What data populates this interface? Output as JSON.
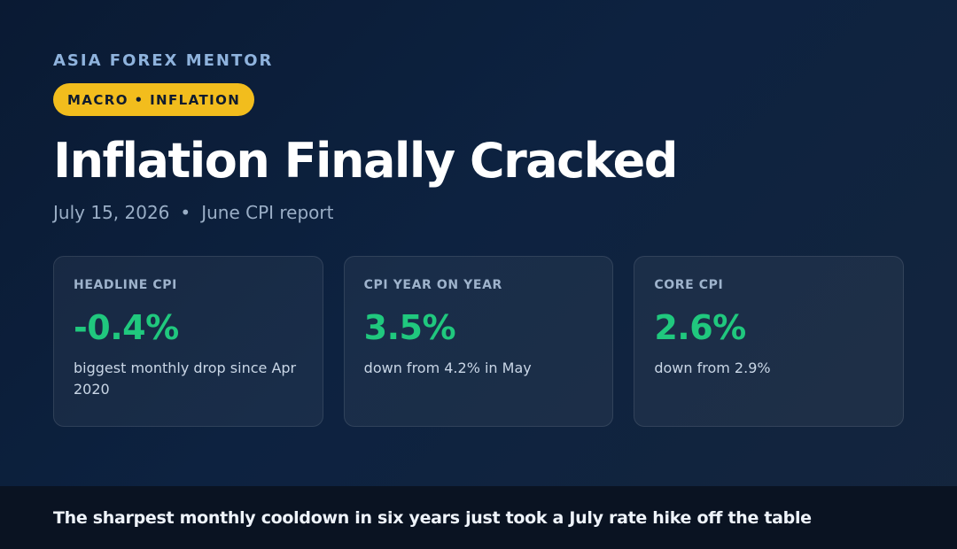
{
  "brand": "ASIA FOREX MENTOR",
  "tag": "MACRO • INFLATION",
  "title": "Inflation Finally Cracked",
  "meta": {
    "date": "July 15, 2026",
    "separator": "•",
    "report": "June CPI report"
  },
  "cards": [
    {
      "label": "HEADLINE CPI",
      "value": "-0.4%",
      "description": "biggest monthly drop since Apr 2020"
    },
    {
      "label": "CPI YEAR ON YEAR",
      "value": "3.5%",
      "description": "down from 4.2% in May"
    },
    {
      "label": "CORE CPI",
      "value": "2.6%",
      "description": "down from 2.9%"
    }
  ],
  "footer": {
    "text": "The sharpest monthly cooldown in six years just took a July rate hike off the table"
  },
  "colors": {
    "accent_yellow": "#f2bd1d",
    "value_green": "#20c87e",
    "background": "#0d2240",
    "footer_bg": "#0a1322"
  }
}
